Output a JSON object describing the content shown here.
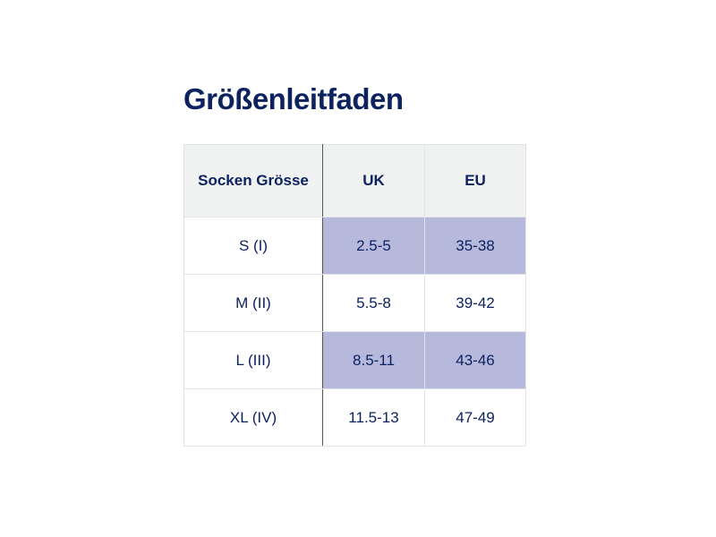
{
  "title": "Größenleitfaden",
  "table": {
    "header": [
      "Socken Grösse",
      "UK",
      "EU"
    ],
    "rows": [
      [
        "S (I)",
        "2.5-5",
        "35-38"
      ],
      [
        "M (II)",
        "5.5-8",
        "39-42"
      ],
      [
        "L (III)",
        "8.5-11",
        "43-46"
      ],
      [
        "XL (IV)",
        "11.5-13",
        "47-49"
      ]
    ]
  }
}
